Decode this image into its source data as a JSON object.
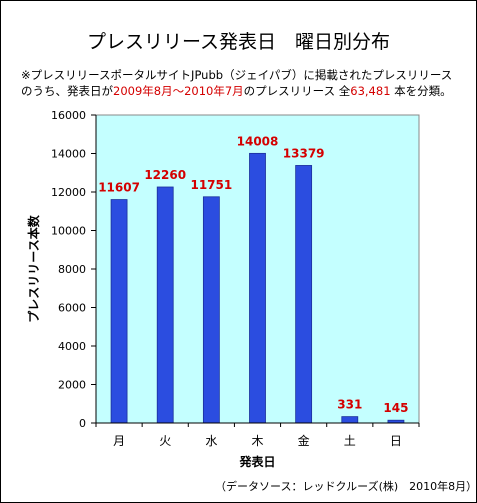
{
  "header": {
    "title": "プレスリリース発表日　曜日別分布",
    "note_line1": "※プレスリリースポータルサイトJPubb（ジェイパブ）に掲載されたプレスリリース",
    "note_line2_a": "のうち、発表日が",
    "note_line2_range": "2009年8月～2010年7月",
    "note_line2_b": "のプレスリリース 全",
    "note_line2_total": "63,481",
    "note_line2_c": " 本を分類。"
  },
  "source": "（データソース：レッドクルーズ(株)　2010年8月）",
  "colors": {
    "bar": "#2b4de0",
    "bar_edge": "#1a2f9a",
    "plot_bg": "#c4ffff",
    "label": "#d40000"
  },
  "chart_data": {
    "type": "bar",
    "categories": [
      "月",
      "火",
      "水",
      "木",
      "金",
      "土",
      "日"
    ],
    "values": [
      11607,
      12260,
      11751,
      14008,
      13379,
      331,
      145
    ],
    "xlabel": "発表日",
    "ylabel": "プレスリリース本数",
    "ylim": [
      0,
      16000
    ],
    "yticks": [
      0,
      2000,
      4000,
      6000,
      8000,
      10000,
      12000,
      14000,
      16000
    ],
    "grid": false
  }
}
